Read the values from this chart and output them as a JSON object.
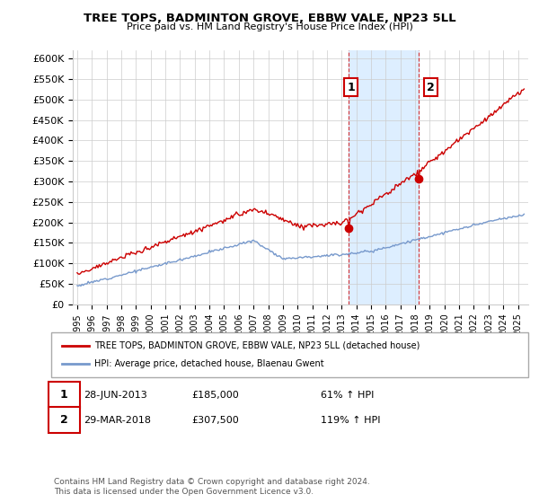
{
  "title": "TREE TOPS, BADMINTON GROVE, EBBW VALE, NP23 5LL",
  "subtitle": "Price paid vs. HM Land Registry's House Price Index (HPI)",
  "ylabel_ticks": [
    "£0",
    "£50K",
    "£100K",
    "£150K",
    "£200K",
    "£250K",
    "£300K",
    "£350K",
    "£400K",
    "£450K",
    "£500K",
    "£550K",
    "£600K"
  ],
  "ytick_values": [
    0,
    50000,
    100000,
    150000,
    200000,
    250000,
    300000,
    350000,
    400000,
    450000,
    500000,
    550000,
    600000
  ],
  "ylim": [
    0,
    620000
  ],
  "xlim_start": 1994.7,
  "xlim_end": 2025.7,
  "xtick_years": [
    1995,
    1996,
    1997,
    1998,
    1999,
    2000,
    2001,
    2002,
    2003,
    2004,
    2005,
    2006,
    2007,
    2008,
    2009,
    2010,
    2011,
    2012,
    2013,
    2014,
    2015,
    2016,
    2017,
    2018,
    2019,
    2020,
    2021,
    2022,
    2023,
    2024,
    2025
  ],
  "red_line_color": "#cc0000",
  "blue_line_color": "#7799cc",
  "highlight_bg_color": "#ddeeff",
  "marker1_x": 2013.5,
  "marker2_x": 2018.25,
  "marker1_y": 185000,
  "marker2_y": 307500,
  "legend_label_red": "TREE TOPS, BADMINTON GROVE, EBBW VALE, NP23 5LL (detached house)",
  "legend_label_blue": "HPI: Average price, detached house, Blaenau Gwent",
  "annotation1_label": "1",
  "annotation2_label": "2",
  "sale1_date": "28-JUN-2013",
  "sale1_price": "£185,000",
  "sale1_hpi": "61% ↑ HPI",
  "sale2_date": "29-MAR-2018",
  "sale2_price": "£307,500",
  "sale2_hpi": "119% ↑ HPI",
  "footer": "Contains HM Land Registry data © Crown copyright and database right 2024.\nThis data is licensed under the Open Government Licence v3.0.",
  "background_color": "#ffffff",
  "grid_color": "#cccccc"
}
